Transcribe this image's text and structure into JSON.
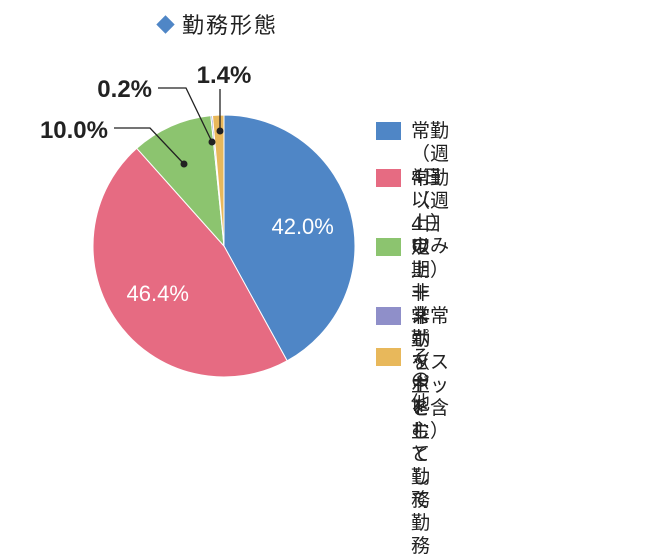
{
  "chart_data": {
    "type": "pie",
    "title": "勤務形態",
    "slices": [
      {
        "label": "常勤（週4日以上）のみ",
        "value": 42.0,
        "value_label": "42.0%",
        "color": "#4f86c6"
      },
      {
        "label": "常勤（週4日以上）＋\n非常勤（スポット含む）",
        "value": 46.4,
        "value_label": "46.4%",
        "color": "#e66b82"
      },
      {
        "label": "定期非常勤を\n主として勤務",
        "value": 10.0,
        "value_label": "10.0%",
        "color": "#8cc46f"
      },
      {
        "label": "スポットを主として勤務",
        "value": 0.2,
        "value_label": "0.2%",
        "color": "#8f8fc9"
      },
      {
        "label": "その他",
        "value": 1.4,
        "value_label": "1.4%",
        "color": "#e8b85b"
      }
    ],
    "legend_position": "right"
  }
}
